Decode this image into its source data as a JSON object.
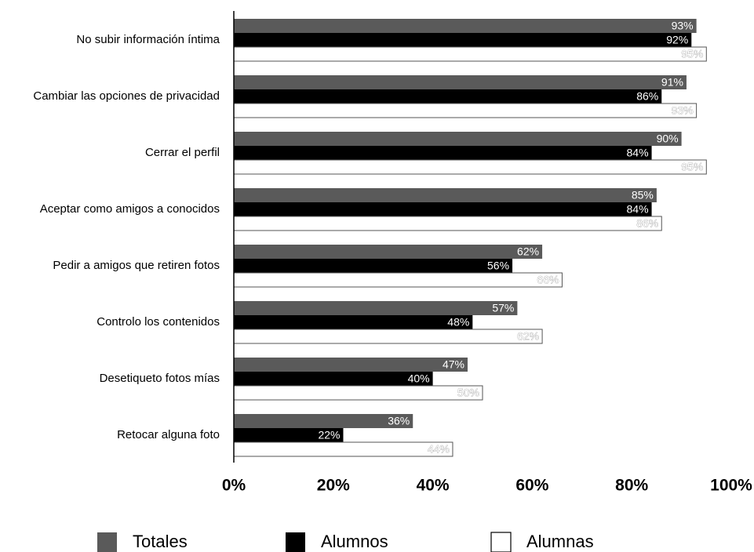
{
  "chart_data": {
    "type": "bar",
    "orientation": "horizontal",
    "title": "",
    "xlabel": "",
    "ylabel": "",
    "xlim": [
      0,
      100
    ],
    "x_ticks": [
      "0%",
      "20%",
      "40%",
      "60%",
      "80%",
      "100%"
    ],
    "grid": false,
    "legend_position": "bottom",
    "categories": [
      "No subir información íntima",
      "Cambiar las opciones de privacidad",
      "Cerrar el perfil",
      "Aceptar como amigos a conocidos",
      "Pedir a amigos que retiren fotos",
      "Controlo los contenidos",
      "Desetiqueto fotos mías",
      "Retocar alguna foto"
    ],
    "series": [
      {
        "name": "Totales",
        "color": "#5a5a5a",
        "values": [
          93,
          91,
          90,
          85,
          62,
          57,
          47,
          36
        ],
        "labels": [
          "93%",
          "91%",
          "90%",
          "85%",
          "62%",
          "57%",
          "47%",
          "36%"
        ]
      },
      {
        "name": "Alumnos",
        "color": "#000000",
        "values": [
          92,
          86,
          84,
          84,
          56,
          48,
          40,
          22
        ],
        "labels": [
          "92%",
          "86%",
          "84%",
          "84%",
          "56%",
          "48%",
          "40%",
          "22%"
        ]
      },
      {
        "name": "Alumnas",
        "color": "#ffffff",
        "values": [
          95,
          93,
          95,
          86,
          66,
          62,
          50,
          44
        ],
        "labels": [
          "95%",
          "93%",
          "95%",
          "86%",
          "66%",
          "62%",
          "50%",
          "44%"
        ]
      }
    ]
  }
}
